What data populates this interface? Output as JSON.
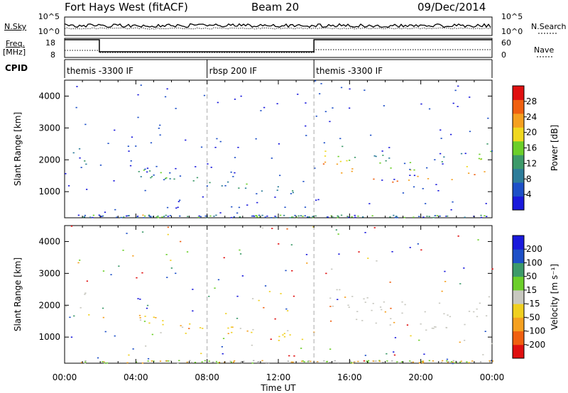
{
  "header": {
    "station": "Fort Hays West (fitACF)",
    "beam": "Beam 20",
    "date": "09/Dec/2014"
  },
  "left_labels": {
    "nsky": "N.Sky",
    "freq_top": "Freq.",
    "freq_unit": "[MHz]",
    "cpid": "CPID"
  },
  "right_labels": {
    "nsearch": "N.Search",
    "nave": "Nave"
  },
  "noise_panel": {
    "left_ticks": [
      "10^5",
      "10^0"
    ],
    "right_ticks": [
      "10^5",
      "10^0"
    ]
  },
  "freq_panel": {
    "left_ticks": [
      "18",
      "8"
    ],
    "right_ticks": [
      "60",
      "0"
    ]
  },
  "cpid_panel": {
    "segments": [
      {
        "label": "themis -3300 IF",
        "start_hour": 0,
        "end_hour": 8
      },
      {
        "label": "rbsp 200 IF",
        "start_hour": 8,
        "end_hour": 14
      },
      {
        "label": "themis -3300 IF",
        "start_hour": 14,
        "end_hour": 24
      }
    ]
  },
  "colors": {
    "power_scale": [
      "#1a1adc",
      "#1e50c8",
      "#2e7d9a",
      "#3d9a6a",
      "#6ccf2a",
      "#f0d820",
      "#f5a020",
      "#f06010",
      "#e01010"
    ],
    "velocity_scale": [
      "#e01010",
      "#f06010",
      "#f5a020",
      "#f0d020",
      "#c8c8c0",
      "#6ccf2a",
      "#3d9a6a",
      "#1e50c8",
      "#1a1adc"
    ],
    "mixed_scatter": [
      "#b0b0b0",
      "#f0a020",
      "#6ccf2a"
    ]
  },
  "chart_data": [
    {
      "type": "heatmap",
      "name": "power",
      "xlabel": "",
      "ylabel": "Slant Range [km]",
      "ylim": [
        180,
        4500
      ],
      "xlim": [
        0,
        24
      ],
      "yticks": [
        "1000",
        "2000",
        "3000",
        "4000"
      ],
      "xtick_hours": [
        0,
        4,
        8,
        12,
        16,
        20,
        24
      ],
      "colorbar": {
        "label": "Power [dB]",
        "ticks": [
          "4",
          "8",
          "12",
          "16",
          "20",
          "24",
          "28"
        ],
        "range": [
          0,
          30
        ]
      },
      "echo_regions": [
        {
          "t0": 0.0,
          "t1": 1.6,
          "r0": 1800,
          "r1": 2400,
          "level": 12
        },
        {
          "t0": 2.2,
          "t1": 3.5,
          "r0": 400,
          "r1": 700,
          "level": 8
        },
        {
          "t0": 3.0,
          "t1": 4.5,
          "r0": 180,
          "r1": 320,
          "level": 22
        },
        {
          "t0": 4.0,
          "t1": 13.5,
          "r0": 900,
          "r1": 1700,
          "level": 10
        },
        {
          "t0": 14.5,
          "t1": 24.0,
          "r0": 1000,
          "r1": 2200,
          "level": 18
        }
      ]
    },
    {
      "type": "heatmap",
      "name": "velocity",
      "xlabel": "Time UT",
      "ylabel": "Slant Range [km]",
      "ylim": [
        180,
        4500
      ],
      "xlim": [
        0,
        24
      ],
      "yticks": [
        "1000",
        "2000",
        "3000",
        "4000"
      ],
      "xtick_labels": [
        "00:00",
        "04:00",
        "08:00",
        "12:00",
        "16:00",
        "20:00",
        "00:00"
      ],
      "xtick_hours": [
        0,
        4,
        8,
        12,
        16,
        20,
        24
      ],
      "colorbar": {
        "label": "Velocity [m s⁻¹]",
        "ticks": [
          "-200",
          "-100",
          "-50",
          "-15",
          "15",
          "50",
          "100",
          "200"
        ]
      },
      "echo_regions": [
        {
          "t0": 0.0,
          "t1": 1.6,
          "r0": 1800,
          "r1": 2400,
          "velocity": 0
        },
        {
          "t0": 4.0,
          "t1": 13.5,
          "r0": 900,
          "r1": 1700,
          "velocity": -60
        },
        {
          "t0": 14.5,
          "t1": 24.0,
          "r0": 1000,
          "r1": 2200,
          "velocity": 0
        }
      ]
    }
  ]
}
